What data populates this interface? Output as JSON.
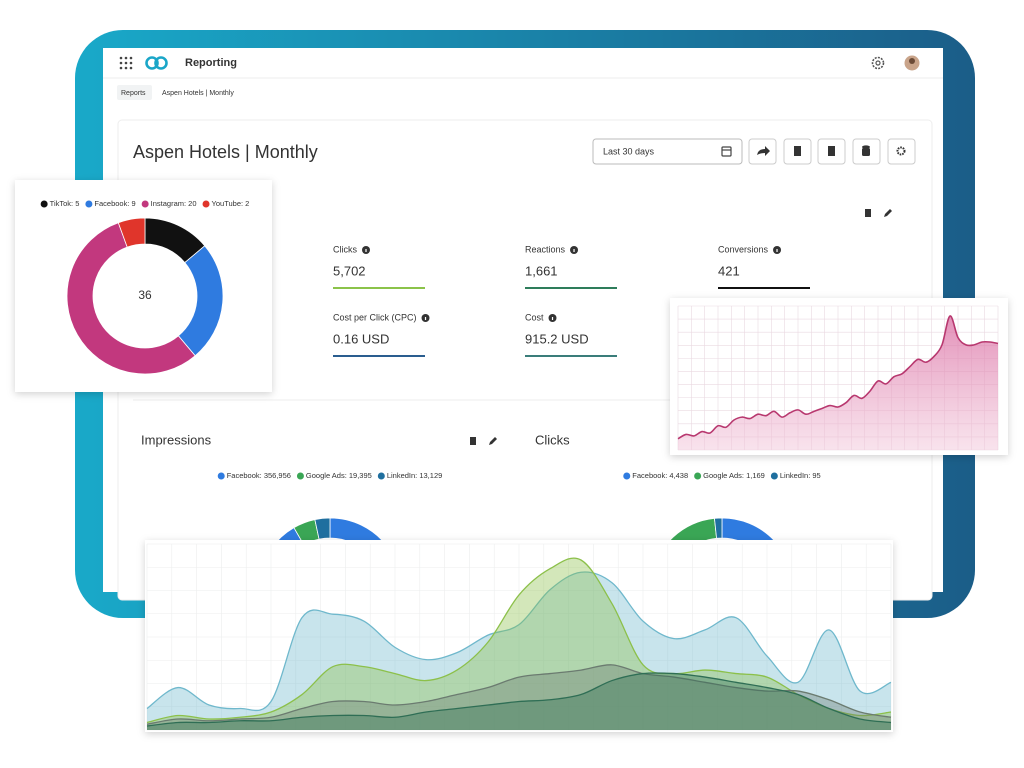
{
  "header": {
    "title": "Reporting"
  },
  "breadcrumbs": [
    "Reports",
    "Aspen Hotels | Monthly"
  ],
  "report": {
    "title": "Aspen Hotels | Monthly",
    "date_range": "Last 30 days"
  },
  "metrics": [
    {
      "label": "Clicks",
      "value": "5,702",
      "color": "#8bc34a"
    },
    {
      "label": "Reactions",
      "value": "1,661",
      "color": "#2e7d5b"
    },
    {
      "label": "Conversions",
      "value": "421",
      "color": "#111111"
    },
    {
      "label": "Cost per Click (CPC)",
      "value": "0.16 USD",
      "color": "#2a5d8f"
    },
    {
      "label": "Cost",
      "value": "915.2 USD",
      "color": "#3a7d7a"
    }
  ],
  "sections": [
    {
      "title": "Impressions",
      "chart": {
        "type": "donut",
        "series": [
          {
            "label": "Facebook: 356,956",
            "value": 356956,
            "color": "#2f7be0"
          },
          {
            "label": "Google Ads: 19,395",
            "value": 19395,
            "color": "#3aa655"
          },
          {
            "label": "LinkedIn: 13,129",
            "value": 13129,
            "color": "#1f6f9f"
          }
        ]
      }
    },
    {
      "title": "Clicks",
      "chart": {
        "type": "donut",
        "series": [
          {
            "label": "Facebook: 4,438",
            "value": 4438,
            "color": "#2f7be0"
          },
          {
            "label": "Google Ads: 1,169",
            "value": 1169,
            "color": "#3aa655"
          },
          {
            "label": "LinkedIn: 95",
            "value": 95,
            "color": "#1f6f9f"
          }
        ]
      }
    }
  ],
  "social_donut": {
    "type": "donut",
    "total": 36,
    "series": [
      {
        "label": "TikTok: 5",
        "value": 5,
        "color": "#111111"
      },
      {
        "label": "Facebook: 9",
        "value": 9,
        "color": "#2f7be0"
      },
      {
        "label": "Instagram: 20",
        "value": 20,
        "color": "#c2387e"
      },
      {
        "label": "YouTube: 2",
        "value": 2,
        "color": "#e0352b"
      }
    ]
  },
  "trend_chart": {
    "type": "area",
    "color": "#b8386f",
    "values": [
      5,
      8,
      7,
      10,
      9,
      14,
      13,
      18,
      20,
      19,
      22,
      21,
      24,
      20,
      23,
      25,
      22,
      24,
      26,
      28,
      27,
      30,
      35,
      33,
      38,
      45,
      43,
      48,
      50,
      55,
      60,
      58,
      62,
      70,
      90,
      75,
      70,
      70,
      72,
      72,
      71
    ]
  },
  "overlay_chart": {
    "type": "area",
    "series": [
      {
        "color": "#6fb8cc",
        "values": [
          10,
          22,
          12,
          10,
          14,
          62,
          64,
          60,
          45,
          38,
          42,
          52,
          58,
          78,
          88,
          82,
          60,
          50,
          55,
          62,
          40,
          25,
          55,
          20,
          25
        ]
      },
      {
        "color": "#8cc04a",
        "values": [
          2,
          6,
          4,
          5,
          8,
          18,
          34,
          34,
          30,
          26,
          32,
          48,
          75,
          90,
          95,
          70,
          35,
          30,
          32,
          30,
          28,
          18,
          10,
          6,
          8
        ]
      },
      {
        "color": "#6b7b70",
        "values": [
          1,
          4,
          3,
          4,
          5,
          10,
          14,
          14,
          12,
          14,
          18,
          22,
          28,
          30,
          32,
          35,
          30,
          28,
          25,
          22,
          20,
          20,
          15,
          8,
          5
        ]
      },
      {
        "color": "#2f6e55",
        "values": [
          0,
          2,
          2,
          3,
          3,
          5,
          6,
          6,
          5,
          8,
          10,
          12,
          14,
          15,
          18,
          26,
          30,
          30,
          28,
          25,
          22,
          18,
          10,
          4,
          2
        ]
      }
    ]
  }
}
